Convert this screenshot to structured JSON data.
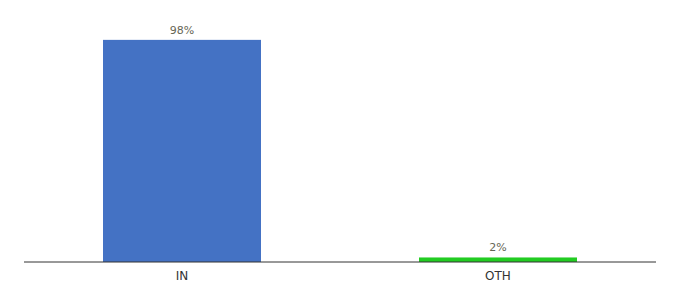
{
  "chart_data": {
    "type": "bar",
    "categories": [
      "IN",
      "OTH"
    ],
    "values": [
      98,
      2
    ],
    "value_labels": [
      "98%",
      "2%"
    ],
    "colors": [
      "#4472c4",
      "#22cc22"
    ],
    "ylim": [
      0,
      105
    ],
    "data_labels": true,
    "tick_labels": "x",
    "grid": false
  }
}
